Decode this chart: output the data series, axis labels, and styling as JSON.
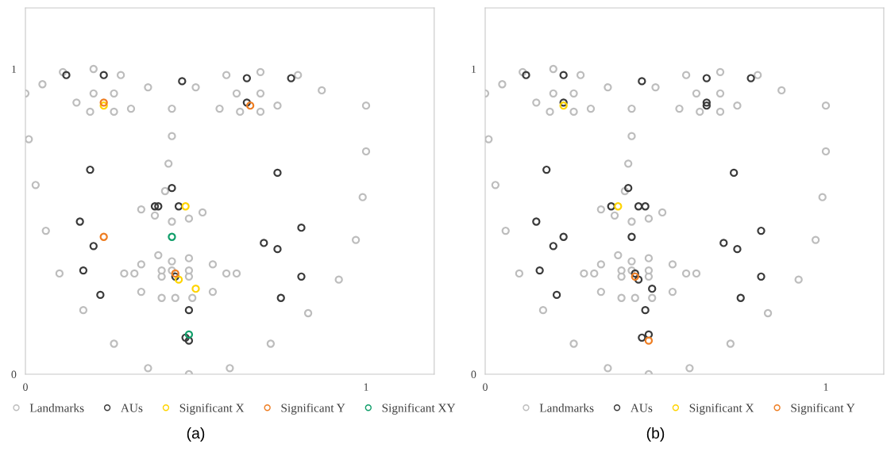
{
  "chart_data": [
    {
      "type": "scatter",
      "xlim": [
        0,
        1.2
      ],
      "ylim": [
        0,
        1.2
      ],
      "xticks": [
        0,
        1
      ],
      "yticks": [
        0,
        1
      ],
      "grid": false,
      "legend": "bottom",
      "marker": "circle",
      "annotations": [
        "(a)"
      ],
      "series": [
        {
          "name": "Landmarks",
          "color": "#bdbdbd",
          "x": [
            0.11,
            0.2,
            0.28,
            0.05,
            0.36,
            0.5,
            0.59,
            0.69,
            0.8,
            0.0,
            0.2,
            0.26,
            0.62,
            0.69,
            0.87,
            0.15,
            0.19,
            0.26,
            0.31,
            0.43,
            0.57,
            0.63,
            0.69,
            0.74,
            1.0,
            0.01,
            0.43,
            1.0,
            0.42,
            0.03,
            0.41,
            0.99,
            0.34,
            0.52,
            0.38,
            0.43,
            0.48,
            0.06,
            0.97,
            0.39,
            0.43,
            0.48,
            0.34,
            0.55,
            0.1,
            0.29,
            0.32,
            0.4,
            0.4,
            0.43,
            0.48,
            0.48,
            0.59,
            0.62,
            0.92,
            0.34,
            0.55,
            0.4,
            0.44,
            0.49,
            0.17,
            0.83,
            0.26,
            0.72,
            0.36,
            0.6,
            0.48
          ],
          "values": [
            0.99,
            1.0,
            0.98,
            0.95,
            0.94,
            0.94,
            0.98,
            0.99,
            0.98,
            0.92,
            0.92,
            0.92,
            0.92,
            0.92,
            0.93,
            0.89,
            0.86,
            0.86,
            0.87,
            0.87,
            0.87,
            0.86,
            0.86,
            0.88,
            0.88,
            0.77,
            0.78,
            0.73,
            0.69,
            0.62,
            0.6,
            0.58,
            0.54,
            0.53,
            0.52,
            0.5,
            0.51,
            0.47,
            0.44,
            0.39,
            0.37,
            0.38,
            0.36,
            0.36,
            0.33,
            0.33,
            0.33,
            0.34,
            0.32,
            0.34,
            0.34,
            0.32,
            0.33,
            0.33,
            0.31,
            0.27,
            0.27,
            0.25,
            0.25,
            0.25,
            0.21,
            0.2,
            0.1,
            0.1,
            0.02,
            0.02,
            0.0
          ]
        },
        {
          "name": "AUs",
          "color": "#3a3a3a",
          "x": [
            0.12,
            0.23,
            0.46,
            0.65,
            0.78,
            0.65,
            0.19,
            0.74,
            0.43,
            0.38,
            0.39,
            0.45,
            0.16,
            0.2,
            0.17,
            0.22,
            0.44,
            0.81,
            0.7,
            0.74,
            0.81,
            0.75,
            0.48,
            0.47,
            0.48
          ],
          "values": [
            0.98,
            0.98,
            0.96,
            0.97,
            0.97,
            0.89,
            0.67,
            0.66,
            0.61,
            0.55,
            0.55,
            0.55,
            0.5,
            0.42,
            0.34,
            0.26,
            0.32,
            0.48,
            0.43,
            0.41,
            0.32,
            0.25,
            0.21,
            0.12,
            0.11
          ]
        },
        {
          "name": "Significant X",
          "color": "#ffd400",
          "x": [
            0.23,
            0.47,
            0.45,
            0.5
          ],
          "values": [
            0.88,
            0.55,
            0.31,
            0.28
          ]
        },
        {
          "name": "Significant Y",
          "color": "#ee7d22",
          "x": [
            0.23,
            0.66,
            0.23,
            0.44
          ],
          "values": [
            0.89,
            0.88,
            0.45,
            0.33
          ]
        },
        {
          "name": "Significant XY",
          "color": "#119e6a",
          "x": [
            0.43,
            0.48
          ],
          "values": [
            0.45,
            0.13
          ]
        }
      ]
    },
    {
      "type": "scatter",
      "xlim": [
        0,
        1.17
      ],
      "ylim": [
        0,
        1.2
      ],
      "xticks": [
        0,
        1
      ],
      "yticks": [
        0,
        1
      ],
      "grid": false,
      "legend": "bottom",
      "marker": "circle",
      "annotations": [
        "(b)"
      ],
      "series": [
        {
          "name": "Landmarks",
          "color": "#bdbdbd",
          "x": [
            0.11,
            0.2,
            0.28,
            0.05,
            0.36,
            0.5,
            0.59,
            0.69,
            0.8,
            0.0,
            0.2,
            0.26,
            0.62,
            0.69,
            0.87,
            0.15,
            0.19,
            0.26,
            0.31,
            0.43,
            0.57,
            0.63,
            0.69,
            0.74,
            1.0,
            0.01,
            0.43,
            1.0,
            0.42,
            0.03,
            0.41,
            0.99,
            0.34,
            0.52,
            0.38,
            0.43,
            0.48,
            0.06,
            0.97,
            0.39,
            0.43,
            0.48,
            0.34,
            0.55,
            0.1,
            0.29,
            0.32,
            0.4,
            0.4,
            0.43,
            0.48,
            0.48,
            0.59,
            0.62,
            0.92,
            0.34,
            0.55,
            0.4,
            0.44,
            0.49,
            0.17,
            0.83,
            0.26,
            0.72,
            0.36,
            0.6,
            0.48
          ],
          "values": [
            0.99,
            1.0,
            0.98,
            0.95,
            0.94,
            0.94,
            0.98,
            0.99,
            0.98,
            0.92,
            0.92,
            0.92,
            0.92,
            0.92,
            0.93,
            0.89,
            0.86,
            0.86,
            0.87,
            0.87,
            0.87,
            0.86,
            0.86,
            0.88,
            0.88,
            0.77,
            0.78,
            0.73,
            0.69,
            0.62,
            0.6,
            0.58,
            0.54,
            0.53,
            0.52,
            0.5,
            0.51,
            0.47,
            0.44,
            0.39,
            0.37,
            0.38,
            0.36,
            0.36,
            0.33,
            0.33,
            0.33,
            0.34,
            0.32,
            0.34,
            0.34,
            0.32,
            0.33,
            0.33,
            0.31,
            0.27,
            0.27,
            0.25,
            0.25,
            0.25,
            0.21,
            0.2,
            0.1,
            0.1,
            0.02,
            0.02,
            0.0
          ]
        },
        {
          "name": "AUs",
          "color": "#3a3a3a",
          "x": [
            0.12,
            0.23,
            0.46,
            0.65,
            0.78,
            0.65,
            0.65,
            0.23,
            0.18,
            0.73,
            0.42,
            0.37,
            0.45,
            0.47,
            0.15,
            0.23,
            0.2,
            0.16,
            0.21,
            0.43,
            0.81,
            0.7,
            0.74,
            0.81,
            0.75,
            0.44,
            0.45,
            0.49,
            0.47,
            0.46,
            0.48
          ],
          "values": [
            0.98,
            0.98,
            0.96,
            0.97,
            0.97,
            0.89,
            0.88,
            0.89,
            0.67,
            0.66,
            0.61,
            0.55,
            0.55,
            0.55,
            0.5,
            0.45,
            0.42,
            0.34,
            0.26,
            0.45,
            0.47,
            0.43,
            0.41,
            0.32,
            0.25,
            0.33,
            0.31,
            0.28,
            0.21,
            0.12,
            0.13
          ]
        },
        {
          "name": "Significant X",
          "color": "#ffd400",
          "x": [
            0.23,
            0.39
          ],
          "values": [
            0.88,
            0.55
          ]
        },
        {
          "name": "Significant Y",
          "color": "#ee7d22",
          "x": [
            0.44,
            0.48
          ],
          "values": [
            0.32,
            0.11
          ]
        }
      ]
    }
  ]
}
